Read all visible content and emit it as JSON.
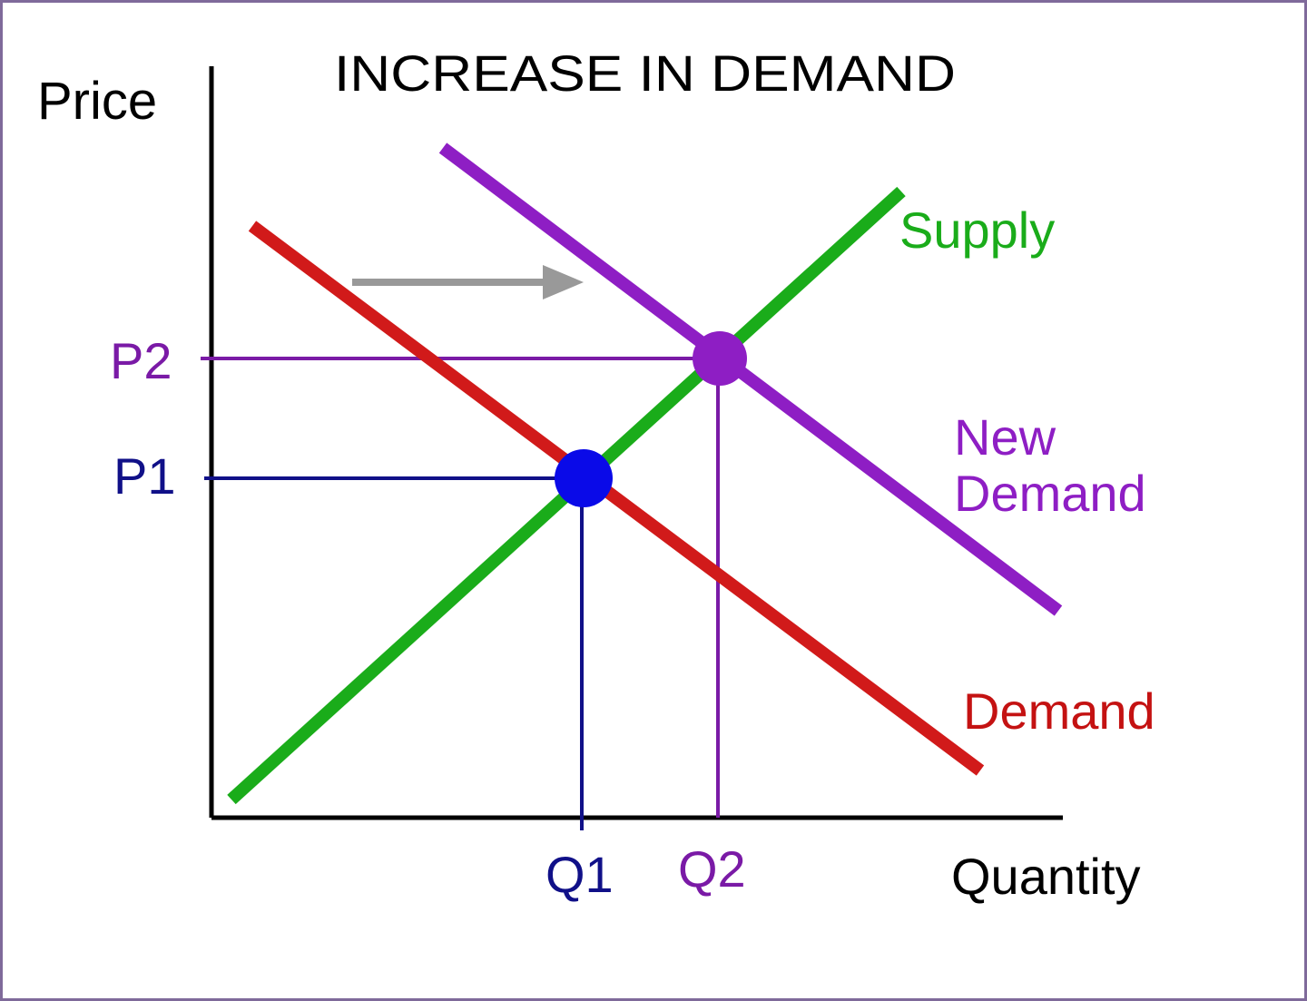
{
  "title": "INCREASE IN DEMAND",
  "axes": {
    "y_label": "Price",
    "x_label": "Quantity"
  },
  "curves": {
    "supply": "Supply",
    "new_demand_line1": "New",
    "new_demand_line2": "Demand",
    "demand": "Demand"
  },
  "ticks": {
    "p1": "P1",
    "p2": "P2",
    "q1": "Q1",
    "q2": "Q2"
  },
  "colors": {
    "axis": "#000000",
    "supply": "#1aac1a",
    "demand": "#d11a1a",
    "new_demand": "#8e1ec4",
    "original_equilibrium": "#0a0ae8",
    "guide_p1_q1": "#101088",
    "guide_p2_q2": "#7a1aa6",
    "shift_arrow": "#999999"
  },
  "icons": {
    "shift": "right-arrow-icon"
  }
}
